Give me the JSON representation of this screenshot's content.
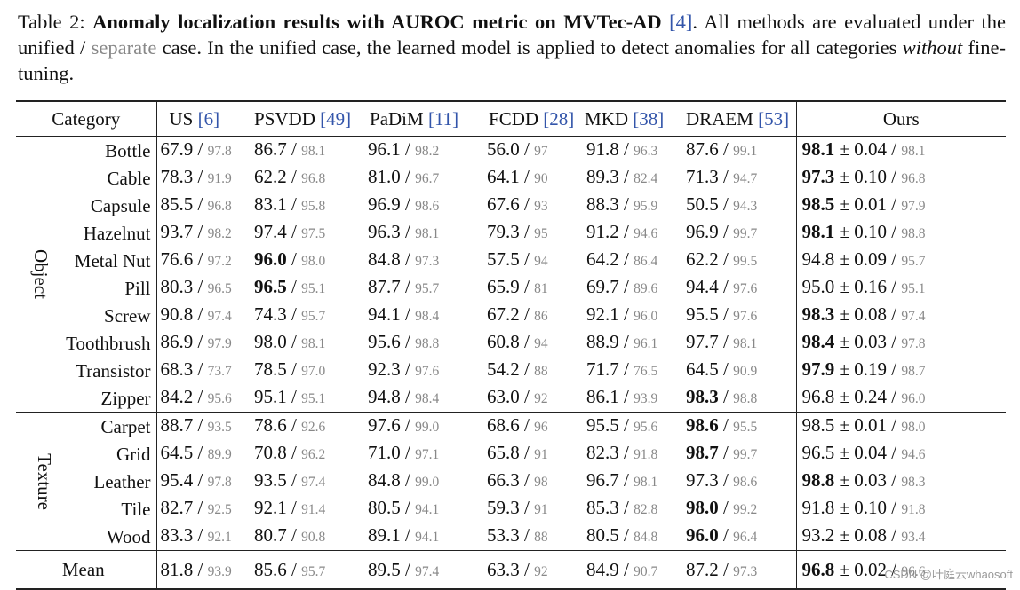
{
  "caption": {
    "label": "Table 2:",
    "title": "Anomaly localization results with AUROC metric on MVTec-AD",
    "title_cite": "[4]",
    "text1": ". All methods are evaluated under the unified /",
    "separate_word": "separate",
    "text2": "case. In the unified case, the learned model is applied to detect anomalies for all categories",
    "emph": "without",
    "text3": "fine-tuning."
  },
  "table": {
    "columns": [
      {
        "name": "Category",
        "cite": ""
      },
      {
        "name": "US",
        "cite": "[6]"
      },
      {
        "name": "PSVDD",
        "cite": "[49]"
      },
      {
        "name": "PaDiM",
        "cite": "[11]"
      },
      {
        "name": "FCDD",
        "cite": "[28]"
      },
      {
        "name": "MKD",
        "cite": "[38]"
      },
      {
        "name": "DRAEM",
        "cite": "[53]"
      },
      {
        "name": "Ours",
        "cite": ""
      }
    ],
    "groups": [
      {
        "name": "Object",
        "rows": [
          {
            "category": "Bottle",
            "cells": [
              {
                "u": "67.9",
                "s": "97.8"
              },
              {
                "u": "86.7",
                "s": "98.1"
              },
              {
                "u": "96.1",
                "s": "98.2"
              },
              {
                "u": "56.0",
                "s": "97"
              },
              {
                "u": "91.8",
                "s": "96.3"
              },
              {
                "u": "87.6",
                "s": "99.1"
              }
            ],
            "ours": {
              "u": "98.1",
              "pm": "0.04",
              "s": "98.1",
              "bold": true
            },
            "bold_col": -1
          },
          {
            "category": "Cable",
            "cells": [
              {
                "u": "78.3",
                "s": "91.9"
              },
              {
                "u": "62.2",
                "s": "96.8"
              },
              {
                "u": "81.0",
                "s": "96.7"
              },
              {
                "u": "64.1",
                "s": "90"
              },
              {
                "u": "89.3",
                "s": "82.4"
              },
              {
                "u": "71.3",
                "s": "94.7"
              }
            ],
            "ours": {
              "u": "97.3",
              "pm": "0.10",
              "s": "96.8",
              "bold": true
            },
            "bold_col": -1
          },
          {
            "category": "Capsule",
            "cells": [
              {
                "u": "85.5",
                "s": "96.8"
              },
              {
                "u": "83.1",
                "s": "95.8"
              },
              {
                "u": "96.9",
                "s": "98.6"
              },
              {
                "u": "67.6",
                "s": "93"
              },
              {
                "u": "88.3",
                "s": "95.9"
              },
              {
                "u": "50.5",
                "s": "94.3"
              }
            ],
            "ours": {
              "u": "98.5",
              "pm": "0.01",
              "s": "97.9",
              "bold": true
            },
            "bold_col": -1
          },
          {
            "category": "Hazelnut",
            "cells": [
              {
                "u": "93.7",
                "s": "98.2"
              },
              {
                "u": "97.4",
                "s": "97.5"
              },
              {
                "u": "96.3",
                "s": "98.1"
              },
              {
                "u": "79.3",
                "s": "95"
              },
              {
                "u": "91.2",
                "s": "94.6"
              },
              {
                "u": "96.9",
                "s": "99.7"
              }
            ],
            "ours": {
              "u": "98.1",
              "pm": "0.10",
              "s": "98.8",
              "bold": true
            },
            "bold_col": -1
          },
          {
            "category": "Metal Nut",
            "cells": [
              {
                "u": "76.6",
                "s": "97.2"
              },
              {
                "u": "96.0",
                "s": "98.0"
              },
              {
                "u": "84.8",
                "s": "97.3"
              },
              {
                "u": "57.5",
                "s": "94"
              },
              {
                "u": "64.2",
                "s": "86.4"
              },
              {
                "u": "62.2",
                "s": "99.5"
              }
            ],
            "ours": {
              "u": "94.8",
              "pm": "0.09",
              "s": "95.7",
              "bold": false
            },
            "bold_col": 1
          },
          {
            "category": "Pill",
            "cells": [
              {
                "u": "80.3",
                "s": "96.5"
              },
              {
                "u": "96.5",
                "s": "95.1"
              },
              {
                "u": "87.7",
                "s": "95.7"
              },
              {
                "u": "65.9",
                "s": "81"
              },
              {
                "u": "69.7",
                "s": "89.6"
              },
              {
                "u": "94.4",
                "s": "97.6"
              }
            ],
            "ours": {
              "u": "95.0",
              "pm": "0.16",
              "s": "95.1",
              "bold": false
            },
            "bold_col": 1
          },
          {
            "category": "Screw",
            "cells": [
              {
                "u": "90.8",
                "s": "97.4"
              },
              {
                "u": "74.3",
                "s": "95.7"
              },
              {
                "u": "94.1",
                "s": "98.4"
              },
              {
                "u": "67.2",
                "s": "86"
              },
              {
                "u": "92.1",
                "s": "96.0"
              },
              {
                "u": "95.5",
                "s": "97.6"
              }
            ],
            "ours": {
              "u": "98.3",
              "pm": "0.08",
              "s": "97.4",
              "bold": true
            },
            "bold_col": -1
          },
          {
            "category": "Toothbrush",
            "cells": [
              {
                "u": "86.9",
                "s": "97.9"
              },
              {
                "u": "98.0",
                "s": "98.1"
              },
              {
                "u": "95.6",
                "s": "98.8"
              },
              {
                "u": "60.8",
                "s": "94"
              },
              {
                "u": "88.9",
                "s": "96.1"
              },
              {
                "u": "97.7",
                "s": "98.1"
              }
            ],
            "ours": {
              "u": "98.4",
              "pm": "0.03",
              "s": "97.8",
              "bold": true
            },
            "bold_col": -1
          },
          {
            "category": "Transistor",
            "cells": [
              {
                "u": "68.3",
                "s": "73.7"
              },
              {
                "u": "78.5",
                "s": "97.0"
              },
              {
                "u": "92.3",
                "s": "97.6"
              },
              {
                "u": "54.2",
                "s": "88"
              },
              {
                "u": "71.7",
                "s": "76.5"
              },
              {
                "u": "64.5",
                "s": "90.9"
              }
            ],
            "ours": {
              "u": "97.9",
              "pm": "0.19",
              "s": "98.7",
              "bold": true
            },
            "bold_col": -1
          },
          {
            "category": "Zipper",
            "cells": [
              {
                "u": "84.2",
                "s": "95.6"
              },
              {
                "u": "95.1",
                "s": "95.1"
              },
              {
                "u": "94.8",
                "s": "98.4"
              },
              {
                "u": "63.0",
                "s": "92"
              },
              {
                "u": "86.1",
                "s": "93.9"
              },
              {
                "u": "98.3",
                "s": "98.8"
              }
            ],
            "ours": {
              "u": "96.8",
              "pm": "0.24",
              "s": "96.0",
              "bold": false
            },
            "bold_col": 5
          }
        ]
      },
      {
        "name": "Texture",
        "rows": [
          {
            "category": "Carpet",
            "cells": [
              {
                "u": "88.7",
                "s": "93.5"
              },
              {
                "u": "78.6",
                "s": "92.6"
              },
              {
                "u": "97.6",
                "s": "99.0"
              },
              {
                "u": "68.6",
                "s": "96"
              },
              {
                "u": "95.5",
                "s": "95.6"
              },
              {
                "u": "98.6",
                "s": "95.5"
              }
            ],
            "ours": {
              "u": "98.5",
              "pm": "0.01",
              "s": "98.0",
              "bold": false
            },
            "bold_col": 5
          },
          {
            "category": "Grid",
            "cells": [
              {
                "u": "64.5",
                "s": "89.9"
              },
              {
                "u": "70.8",
                "s": "96.2"
              },
              {
                "u": "71.0",
                "s": "97.1"
              },
              {
                "u": "65.8",
                "s": "91"
              },
              {
                "u": "82.3",
                "s": "91.8"
              },
              {
                "u": "98.7",
                "s": "99.7"
              }
            ],
            "ours": {
              "u": "96.5",
              "pm": "0.04",
              "s": "94.6",
              "bold": false
            },
            "bold_col": 5
          },
          {
            "category": "Leather",
            "cells": [
              {
                "u": "95.4",
                "s": "97.8"
              },
              {
                "u": "93.5",
                "s": "97.4"
              },
              {
                "u": "84.8",
                "s": "99.0"
              },
              {
                "u": "66.3",
                "s": "98"
              },
              {
                "u": "96.7",
                "s": "98.1"
              },
              {
                "u": "97.3",
                "s": "98.6"
              }
            ],
            "ours": {
              "u": "98.8",
              "pm": "0.03",
              "s": "98.3",
              "bold": true
            },
            "bold_col": -1
          },
          {
            "category": "Tile",
            "cells": [
              {
                "u": "82.7",
                "s": "92.5"
              },
              {
                "u": "92.1",
                "s": "91.4"
              },
              {
                "u": "80.5",
                "s": "94.1"
              },
              {
                "u": "59.3",
                "s": "91"
              },
              {
                "u": "85.3",
                "s": "82.8"
              },
              {
                "u": "98.0",
                "s": "99.2"
              }
            ],
            "ours": {
              "u": "91.8",
              "pm": "0.10",
              "s": "91.8",
              "bold": false
            },
            "bold_col": 5
          },
          {
            "category": "Wood",
            "cells": [
              {
                "u": "83.3",
                "s": "92.1"
              },
              {
                "u": "80.7",
                "s": "90.8"
              },
              {
                "u": "89.1",
                "s": "94.1"
              },
              {
                "u": "53.3",
                "s": "88"
              },
              {
                "u": "80.5",
                "s": "84.8"
              },
              {
                "u": "96.0",
                "s": "96.4"
              }
            ],
            "ours": {
              "u": "93.2",
              "pm": "0.08",
              "s": "93.4",
              "bold": false
            },
            "bold_col": 5
          }
        ]
      }
    ],
    "mean": {
      "label": "Mean",
      "cells": [
        {
          "u": "81.8",
          "s": "93.9"
        },
        {
          "u": "85.6",
          "s": "95.7"
        },
        {
          "u": "89.5",
          "s": "97.4"
        },
        {
          "u": "63.3",
          "s": "92"
        },
        {
          "u": "84.9",
          "s": "90.7"
        },
        {
          "u": "87.2",
          "s": "97.3"
        }
      ],
      "ours": {
        "u": "96.8",
        "pm": "0.02",
        "s": "96.6",
        "bold": true
      },
      "bold_col": -1
    }
  },
  "pm_symbol": "±",
  "slash": "/",
  "watermark": "CSDN @叶庭云whaosoft"
}
